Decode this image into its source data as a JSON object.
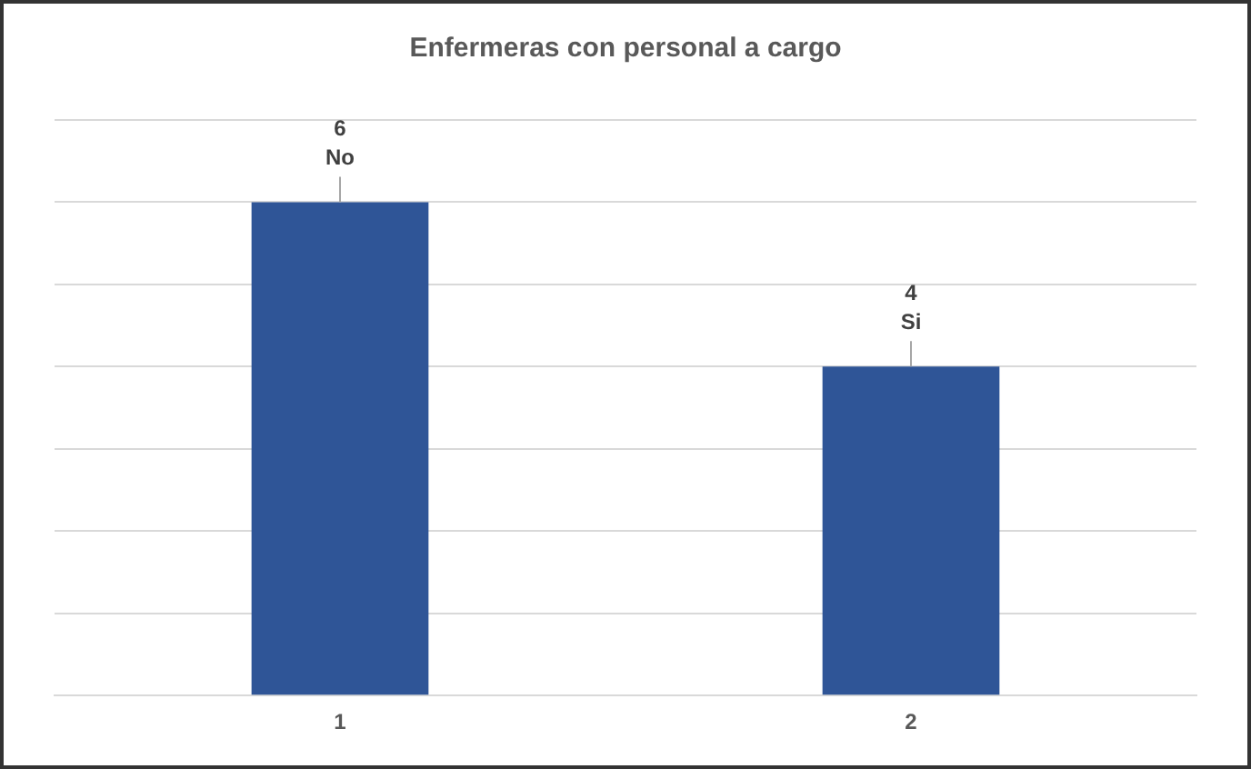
{
  "chart_data": {
    "type": "bar",
    "title": "Enfermeras con personal a cargo",
    "categories": [
      "1",
      "2"
    ],
    "values": [
      6,
      4
    ],
    "color": "#2f5597",
    "ylim": [
      0,
      7
    ],
    "yticks": [
      {
        "value": 0,
        "label": null
      },
      {
        "value": 1,
        "label": null
      },
      {
        "value": 2,
        "label": null
      },
      {
        "value": 3,
        "label": null
      },
      {
        "value": 4,
        "label": null
      },
      {
        "value": 5,
        "label": null
      },
      {
        "value": 6,
        "label": null
      },
      {
        "value": 7,
        "label": null
      }
    ],
    "grid": "y",
    "tick_labels": "x",
    "data_labels": true,
    "annotations": [
      {
        "text": "No",
        "x": "1",
        "y": 6
      },
      {
        "text": "Si",
        "x": "2",
        "y": 4
      }
    ]
  }
}
